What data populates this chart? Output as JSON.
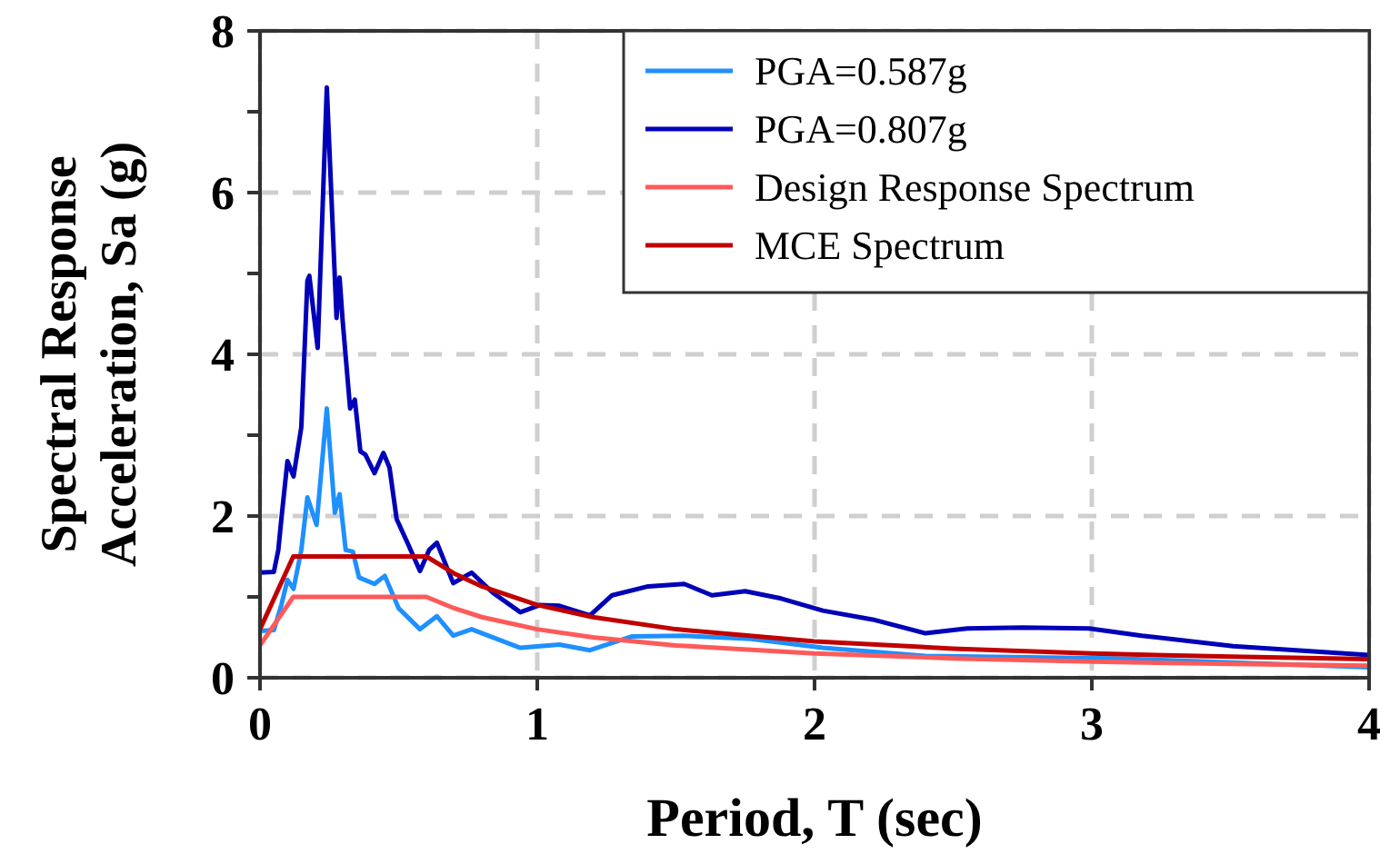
{
  "chart_data": {
    "type": "line",
    "xlabel": "Period, T (sec)",
    "ylabel": "Spectral Response\nAcceleration, Sa (g)",
    "xlim": [
      0,
      4
    ],
    "xticks": [
      0,
      1,
      2,
      3,
      4
    ],
    "ylim": [
      0,
      8
    ],
    "yticks": [
      0,
      {
        "value": 1,
        "label": null
      },
      2,
      {
        "value": 3,
        "label": null
      },
      4,
      {
        "value": 5,
        "label": null
      },
      6,
      {
        "value": 7,
        "label": null
      },
      8
    ],
    "grid": true,
    "legend": "top right",
    "line_style": "solid",
    "series": [
      {
        "name": "PGA=0.587g",
        "color": "#1e90ff",
        "x": [
          0,
          0.05,
          0.077,
          0.099,
          0.121,
          0.149,
          0.171,
          0.204,
          0.241,
          0.27,
          0.287,
          0.309,
          0.335,
          0.357,
          0.413,
          0.45,
          0.5,
          0.577,
          0.638,
          0.697,
          0.763,
          0.939,
          1.08,
          1.19,
          1.34,
          1.53,
          1.77,
          2.03,
          2.4,
          3.08,
          4
        ],
        "values": [
          0.58,
          0.59,
          0.9,
          1.21,
          1.1,
          1.58,
          2.23,
          1.89,
          3.33,
          2.04,
          2.27,
          1.58,
          1.56,
          1.24,
          1.16,
          1.26,
          0.86,
          0.6,
          0.76,
          0.52,
          0.6,
          0.37,
          0.41,
          0.34,
          0.51,
          0.52,
          0.48,
          0.37,
          0.27,
          0.24,
          0.13
        ]
      },
      {
        "name": "PGA=0.807g",
        "color": "#0000b8",
        "x": [
          0,
          0.05,
          0.066,
          0.077,
          0.099,
          0.121,
          0.149,
          0.171,
          0.178,
          0.208,
          0.241,
          0.276,
          0.287,
          0.298,
          0.325,
          0.342,
          0.362,
          0.38,
          0.413,
          0.445,
          0.467,
          0.493,
          0.533,
          0.577,
          0.61,
          0.638,
          0.697,
          0.763,
          0.84,
          0.939,
          1.01,
          1.08,
          1.19,
          1.27,
          1.4,
          1.53,
          1.63,
          1.75,
          1.88,
          2.03,
          2.21,
          2.4,
          2.55,
          2.75,
          2.99,
          3.18,
          3.51,
          4
        ],
        "values": [
          1.3,
          1.31,
          1.58,
          1.96,
          2.68,
          2.49,
          3.1,
          4.91,
          4.97,
          4.08,
          7.3,
          4.45,
          4.95,
          4.42,
          3.33,
          3.44,
          2.8,
          2.76,
          2.53,
          2.78,
          2.6,
          1.96,
          1.66,
          1.32,
          1.58,
          1.67,
          1.17,
          1.3,
          1.05,
          0.81,
          0.9,
          0.89,
          0.77,
          1.02,
          1.13,
          1.16,
          1.02,
          1.07,
          0.98,
          0.83,
          0.72,
          0.55,
          0.61,
          0.62,
          0.61,
          0.52,
          0.39,
          0.28
        ]
      },
      {
        "name": "Design Response Spectrum",
        "color": "#ff5a5a",
        "x": [
          0,
          0.12,
          0.6,
          0.7,
          0.8,
          1,
          1.2,
          1.5,
          2,
          2.5,
          3,
          3.5,
          4
        ],
        "values": [
          0.4,
          1,
          1,
          0.86,
          0.75,
          0.6,
          0.5,
          0.4,
          0.3,
          0.24,
          0.2,
          0.17,
          0.15
        ]
      },
      {
        "name": "MCE Spectrum",
        "color": "#c00000",
        "x": [
          0,
          0.12,
          0.6,
          0.7,
          0.8,
          1,
          1.2,
          1.5,
          2,
          2.5,
          3,
          3.5,
          4
        ],
        "values": [
          0.6,
          1.5,
          1.5,
          1.29,
          1.13,
          0.9,
          0.75,
          0.6,
          0.45,
          0.36,
          0.3,
          0.26,
          0.23
        ]
      }
    ]
  }
}
